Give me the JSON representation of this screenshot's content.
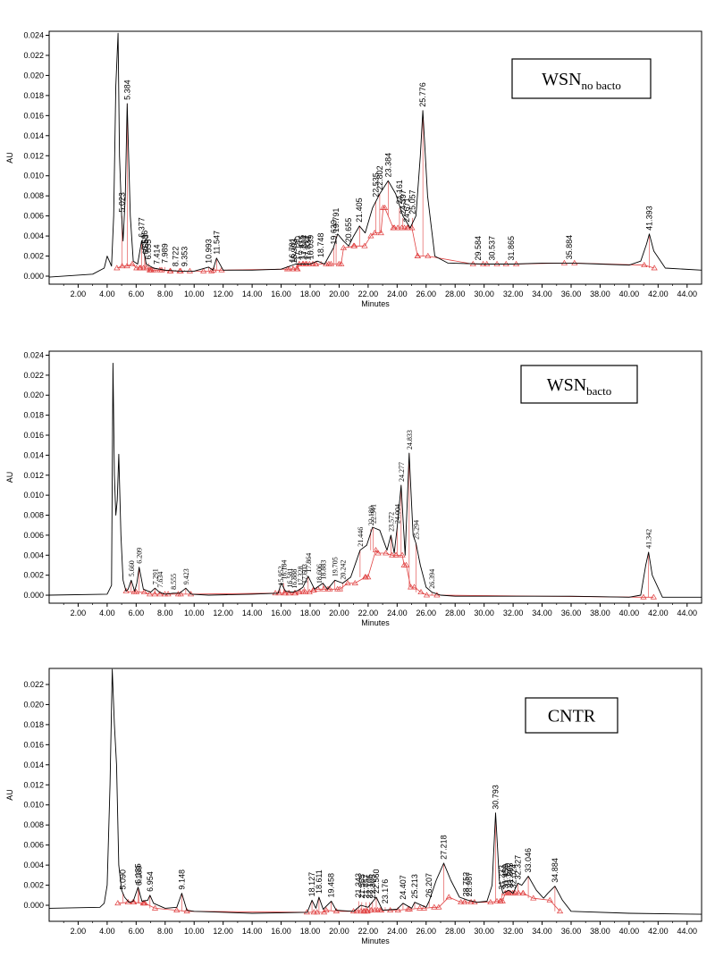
{
  "chart_data": [
    {
      "type": "line",
      "title": "WSN",
      "title_sub": "no bacto",
      "xlabel": "Minutes",
      "ylabel": "AU",
      "xlim": [
        0,
        45
      ],
      "ylim": [
        -0.0008,
        0.0244
      ],
      "xticks": [
        "2.00",
        "4.00",
        "6.00",
        "8.00",
        "10.00",
        "12.00",
        "14.00",
        "16.00",
        "18.00",
        "20.00",
        "22.00",
        "24.00",
        "26.00",
        "28.00",
        "30.00",
        "32.00",
        "34.00",
        "36.00",
        "38.00",
        "40.00",
        "42.00",
        "44.00"
      ],
      "yticks": [
        "0.000",
        "0.002",
        "0.004",
        "0.006",
        "0.008",
        "0.010",
        "0.012",
        "0.014",
        "0.016",
        "0.018",
        "0.020",
        "0.022",
        "0.024"
      ],
      "series": [
        {
          "x": [
            0.0,
            3.0,
            3.8,
            4.0,
            4.3,
            4.45,
            4.6,
            4.75,
            4.85,
            5.0,
            5.1,
            5.25,
            5.384,
            5.6,
            5.8,
            6.1,
            6.377,
            6.7,
            7.2,
            8.0,
            9.0,
            10.0,
            10.993,
            11.3,
            11.547,
            12.0,
            14.0,
            16.0,
            17.0,
            18.0,
            18.5,
            19.0,
            19.6,
            19.9,
            20.3,
            20.655,
            21.0,
            21.405,
            21.8,
            22.3,
            22.8,
            23.384,
            23.9,
            24.4,
            24.9,
            25.3,
            25.6,
            25.776,
            26.1,
            26.6,
            27.5,
            30.0,
            32.0,
            34.0,
            36.0,
            38.0,
            40.0,
            40.8,
            41.2,
            41.393,
            41.7,
            42.5,
            45.0
          ],
          "y": [
            -0.0001,
            0.0002,
            0.0008,
            0.002,
            0.001,
            0.006,
            0.019,
            0.0242,
            0.012,
            0.006,
            0.0035,
            0.008,
            0.0172,
            0.006,
            0.0015,
            0.0012,
            0.0035,
            0.0012,
            0.0008,
            0.0006,
            0.0005,
            0.0005,
            0.0009,
            0.0006,
            0.0018,
            0.0006,
            0.0006,
            0.0007,
            0.0012,
            0.0012,
            0.0015,
            0.0012,
            0.0028,
            0.0042,
            0.0035,
            0.003,
            0.004,
            0.005,
            0.0043,
            0.0068,
            0.0082,
            0.0095,
            0.0082,
            0.006,
            0.0048,
            0.006,
            0.012,
            0.0165,
            0.008,
            0.002,
            0.0013,
            0.0012,
            0.0012,
            0.0013,
            0.0013,
            0.0012,
            0.0011,
            0.0015,
            0.0032,
            0.0042,
            0.0025,
            0.0008,
            0.0006
          ]
        }
      ],
      "peaks": [
        {
          "rt": "5.023",
          "x": 5.023,
          "y": 0.006
        },
        {
          "rt": "5.384",
          "x": 5.384,
          "y": 0.0172
        },
        {
          "rt": "6.377",
          "x": 6.377,
          "y": 0.0035
        },
        {
          "rt": "6.586",
          "x": 6.586,
          "y": 0.0022
        },
        {
          "rt": "6.653",
          "x": 6.653,
          "y": 0.0018
        },
        {
          "rt": "6.855",
          "x": 6.855,
          "y": 0.0013
        },
        {
          "rt": "7.414",
          "x": 7.414,
          "y": 0.0008
        },
        {
          "rt": "7.989",
          "x": 7.989,
          "y": 0.0009
        },
        {
          "rt": "8.722",
          "x": 8.722,
          "y": 0.0006
        },
        {
          "rt": "9.353",
          "x": 9.353,
          "y": 0.0006
        },
        {
          "rt": "10.993",
          "x": 10.993,
          "y": 0.0009
        },
        {
          "rt": "11.547",
          "x": 11.547,
          "y": 0.0018
        },
        {
          "rt": "16.781",
          "x": 16.781,
          "y": 0.001
        },
        {
          "rt": "16.903",
          "x": 16.903,
          "y": 0.0009
        },
        {
          "rt": "17.180",
          "x": 17.18,
          "y": 0.0012
        },
        {
          "rt": "17.416",
          "x": 17.416,
          "y": 0.0013
        },
        {
          "rt": "17.604",
          "x": 17.604,
          "y": 0.0013
        },
        {
          "rt": "17.834",
          "x": 17.834,
          "y": 0.0012
        },
        {
          "rt": "18.039",
          "x": 18.039,
          "y": 0.0013
        },
        {
          "rt": "18.748",
          "x": 18.748,
          "y": 0.0015
        },
        {
          "rt": "19.639",
          "x": 19.639,
          "y": 0.0028
        },
        {
          "rt": "19.791",
          "x": 19.791,
          "y": 0.004
        },
        {
          "rt": "20.655",
          "x": 20.655,
          "y": 0.003
        },
        {
          "rt": "21.405",
          "x": 21.405,
          "y": 0.005
        },
        {
          "rt": "22.535",
          "x": 22.535,
          "y": 0.0075
        },
        {
          "rt": "22.802",
          "x": 22.802,
          "y": 0.0082
        },
        {
          "rt": "23.384",
          "x": 23.384,
          "y": 0.0095
        },
        {
          "rt": "24.161",
          "x": 24.161,
          "y": 0.0068
        },
        {
          "rt": "24.397",
          "x": 24.397,
          "y": 0.0058
        },
        {
          "rt": "24.671",
          "x": 24.671,
          "y": 0.005
        },
        {
          "rt": "25.057",
          "x": 25.057,
          "y": 0.0058
        },
        {
          "rt": "25.776",
          "x": 25.776,
          "y": 0.0165
        },
        {
          "rt": "29.584",
          "x": 29.584,
          "y": 0.0012
        },
        {
          "rt": "30.537",
          "x": 30.537,
          "y": 0.0012
        },
        {
          "rt": "31.865",
          "x": 31.865,
          "y": 0.0012
        },
        {
          "rt": "35.884",
          "x": 35.884,
          "y": 0.0013
        },
        {
          "rt": "41.393",
          "x": 41.393,
          "y": 0.0042
        }
      ]
    },
    {
      "type": "line",
      "title": "WSN",
      "title_sub": "bacto",
      "xlabel": "Minutes",
      "ylabel": "AU",
      "xlim": [
        0,
        45
      ],
      "ylim": [
        -0.0008,
        0.0244
      ],
      "xticks": [
        "2.00",
        "4.00",
        "6.00",
        "8.00",
        "10.00",
        "12.00",
        "14.00",
        "16.00",
        "18.00",
        "20.00",
        "22.00",
        "24.00",
        "26.00",
        "28.00",
        "30.00",
        "32.00",
        "34.00",
        "36.00",
        "38.00",
        "40.00",
        "42.00",
        "44.00"
      ],
      "yticks": [
        "0.000",
        "0.002",
        "0.004",
        "0.006",
        "0.008",
        "0.010",
        "0.012",
        "0.014",
        "0.016",
        "0.018",
        "0.020",
        "0.022",
        "0.024"
      ],
      "series": [
        {
          "x": [
            0.0,
            4.0,
            4.3,
            4.4,
            4.5,
            4.6,
            4.7,
            4.8,
            4.95,
            5.1,
            5.3,
            5.45,
            5.66,
            5.9,
            6.05,
            6.209,
            6.5,
            7.0,
            7.3,
            7.6,
            8.0,
            8.555,
            9.0,
            9.423,
            9.8,
            11.0,
            14.0,
            15.8,
            16.0,
            16.3,
            16.8,
            17.2,
            17.5,
            17.864,
            18.3,
            18.883,
            19.2,
            19.705,
            20.242,
            20.8,
            21.446,
            21.9,
            22.3,
            22.8,
            23.3,
            23.572,
            23.8,
            24.004,
            24.277,
            24.55,
            24.833,
            25.1,
            25.3,
            25.6,
            26.0,
            26.394,
            27.0,
            28.0,
            32.0,
            36.0,
            40.0,
            40.8,
            41.15,
            41.342,
            41.6,
            42.3,
            45.0
          ],
          "y": [
            0.0,
            0.0001,
            0.001,
            0.0232,
            0.012,
            0.008,
            0.0095,
            0.0141,
            0.006,
            0.0015,
            0.0004,
            0.0006,
            0.0015,
            0.0004,
            0.0012,
            0.0028,
            0.0006,
            0.0003,
            0.0007,
            0.0003,
            0.0001,
            0.0002,
            0.0002,
            0.0007,
            0.0001,
            0.0,
            0.0001,
            0.0002,
            0.0012,
            0.0004,
            0.0003,
            0.0005,
            0.0008,
            0.0019,
            0.0006,
            0.0012,
            0.0006,
            0.0015,
            0.0012,
            0.0018,
            0.0045,
            0.005,
            0.0068,
            0.0065,
            0.0045,
            0.006,
            0.0042,
            0.0068,
            0.011,
            0.004,
            0.0142,
            0.006,
            0.0052,
            0.003,
            0.0008,
            0.0003,
            0.0,
            -0.0001,
            -0.0001,
            -0.0001,
            -0.0002,
            0.0,
            0.003,
            0.0043,
            0.002,
            -0.0002,
            -0.0002
          ]
        }
      ],
      "peaks": [
        {
          "rt": "5.660",
          "x": 5.66,
          "y": 0.0015
        },
        {
          "rt": "6.209",
          "x": 6.209,
          "y": 0.0028
        },
        {
          "rt": "7.291",
          "x": 7.291,
          "y": 0.0007
        },
        {
          "rt": "7.634",
          "x": 7.634,
          "y": 0.0004
        },
        {
          "rt": "8.555",
          "x": 8.555,
          "y": 0.0002
        },
        {
          "rt": "9.423",
          "x": 9.423,
          "y": 0.0007
        },
        {
          "rt": "15.952",
          "x": 15.952,
          "y": 0.0006
        },
        {
          "rt": "16.184",
          "x": 16.184,
          "y": 0.0012
        },
        {
          "rt": "16.581",
          "x": 16.581,
          "y": 0.0004
        },
        {
          "rt": "16.888",
          "x": 16.888,
          "y": 0.0003
        },
        {
          "rt": "17.328",
          "x": 17.328,
          "y": 0.0006
        },
        {
          "rt": "17.603",
          "x": 17.603,
          "y": 0.0008
        },
        {
          "rt": "17.864",
          "x": 17.864,
          "y": 0.0019
        },
        {
          "rt": "18.606",
          "x": 18.606,
          "y": 0.0008
        },
        {
          "rt": "18.883",
          "x": 18.883,
          "y": 0.0012
        },
        {
          "rt": "19.705",
          "x": 19.705,
          "y": 0.0015
        },
        {
          "rt": "20.242",
          "x": 20.242,
          "y": 0.0012
        },
        {
          "rt": "21.446",
          "x": 21.446,
          "y": 0.0045
        },
        {
          "rt": "22.180",
          "x": 22.18,
          "y": 0.0066
        },
        {
          "rt": "22.341",
          "x": 22.341,
          "y": 0.0068
        },
        {
          "rt": "23.572",
          "x": 23.572,
          "y": 0.006
        },
        {
          "rt": "24.004",
          "x": 24.004,
          "y": 0.0068
        },
        {
          "rt": "24.277",
          "x": 24.277,
          "y": 0.011
        },
        {
          "rt": "24.833",
          "x": 24.833,
          "y": 0.0142
        },
        {
          "rt": "25.294",
          "x": 25.294,
          "y": 0.0052
        },
        {
          "rt": "26.394",
          "x": 26.394,
          "y": 0.0003
        },
        {
          "rt": "41.342",
          "x": 41.342,
          "y": 0.0043
        }
      ]
    },
    {
      "type": "line",
      "title": "CNTR",
      "title_sub": "",
      "xlabel": "Minutes",
      "ylabel": "AU",
      "xlim": [
        0,
        45
      ],
      "ylim": [
        -0.0016,
        0.0236
      ],
      "xticks": [
        "2.00",
        "4.00",
        "6.00",
        "8.00",
        "10.00",
        "12.00",
        "14.00",
        "16.00",
        "18.00",
        "20.00",
        "22.00",
        "24.00",
        "26.00",
        "28.00",
        "30.00",
        "32.00",
        "34.00",
        "36.00",
        "38.00",
        "40.00",
        "42.00",
        "44.00"
      ],
      "yticks": [
        "0.000",
        "0.002",
        "0.004",
        "0.006",
        "0.008",
        "0.010",
        "0.012",
        "0.014",
        "0.016",
        "0.018",
        "0.020",
        "0.022"
      ],
      "series": [
        {
          "x": [
            0.0,
            3.5,
            3.8,
            4.0,
            4.2,
            4.35,
            4.5,
            4.65,
            4.8,
            5.0,
            5.2,
            5.5,
            5.8,
            6.135,
            6.4,
            6.8,
            6.954,
            7.2,
            8.0,
            8.8,
            9.148,
            9.5,
            10.0,
            14.0,
            17.8,
            18.127,
            18.4,
            18.611,
            18.9,
            19.458,
            19.8,
            21.0,
            21.5,
            22.0,
            22.56,
            23.0,
            24.0,
            24.407,
            25.0,
            25.213,
            26.0,
            26.207,
            26.7,
            27.218,
            27.7,
            28.3,
            28.9,
            29.5,
            30.2,
            30.55,
            30.793,
            31.05,
            31.3,
            31.7,
            32.0,
            32.327,
            32.6,
            33.046,
            33.6,
            34.1,
            34.4,
            34.884,
            35.4,
            36.0,
            40.0,
            45.0
          ],
          "y": [
            -0.0003,
            -0.0002,
            0.0002,
            0.002,
            0.012,
            0.0235,
            0.018,
            0.014,
            0.004,
            0.0015,
            0.0008,
            0.0003,
            0.0004,
            0.0018,
            0.0004,
            0.0005,
            0.001,
            0.0002,
            -0.0003,
            -0.0002,
            0.0012,
            -0.0005,
            -0.0006,
            -0.0008,
            -0.0007,
            0.0005,
            -0.0003,
            0.0008,
            -0.0004,
            0.0004,
            -0.0005,
            -0.0006,
            0.0,
            -0.0002,
            0.0008,
            -0.0005,
            -0.0004,
            0.0002,
            -0.0003,
            0.0003,
            -0.0002,
            0.0004,
            0.0025,
            0.0042,
            0.0025,
            0.0008,
            0.0005,
            0.0003,
            0.0004,
            0.002,
            0.0092,
            0.0025,
            0.0012,
            0.0015,
            0.0012,
            0.0022,
            0.002,
            0.0029,
            0.0015,
            0.0007,
            0.0012,
            0.0019,
            0.0005,
            -0.0006,
            -0.0008,
            -0.0009
          ]
        }
      ],
      "peaks": [
        {
          "rt": "5.090",
          "x": 5.09,
          "y": 0.0012
        },
        {
          "rt": "6.135",
          "x": 6.135,
          "y": 0.0018
        },
        {
          "rt": "6.189",
          "x": 6.189,
          "y": 0.0016
        },
        {
          "rt": "6.954",
          "x": 6.954,
          "y": 0.001
        },
        {
          "rt": "9.148",
          "x": 9.148,
          "y": 0.0012
        },
        {
          "rt": "18.127",
          "x": 18.127,
          "y": 0.0005
        },
        {
          "rt": "18.611",
          "x": 18.611,
          "y": 0.0008
        },
        {
          "rt": "19.458",
          "x": 19.458,
          "y": 0.0004
        },
        {
          "rt": "21.343",
          "x": 21.343,
          "y": 0.0004
        },
        {
          "rt": "21.565",
          "x": 21.565,
          "y": 0.0003
        },
        {
          "rt": "21.857",
          "x": 21.857,
          "y": 0.0003
        },
        {
          "rt": "22.105",
          "x": 22.105,
          "y": 0.0003
        },
        {
          "rt": "22.305",
          "x": 22.305,
          "y": 0.0003
        },
        {
          "rt": "22.560",
          "x": 22.56,
          "y": 0.0008
        },
        {
          "rt": "23.176",
          "x": 23.176,
          "y": -0.0002
        },
        {
          "rt": "24.407",
          "x": 24.407,
          "y": 0.0002
        },
        {
          "rt": "25.213",
          "x": 25.213,
          "y": 0.0003
        },
        {
          "rt": "26.207",
          "x": 26.207,
          "y": 0.0004
        },
        {
          "rt": "27.218",
          "x": 27.218,
          "y": 0.0042
        },
        {
          "rt": "28.752",
          "x": 28.752,
          "y": 0.0005
        },
        {
          "rt": "28.987",
          "x": 28.987,
          "y": 0.0005
        },
        {
          "rt": "30.793",
          "x": 30.793,
          "y": 0.0092
        },
        {
          "rt": "31.233",
          "x": 31.233,
          "y": 0.0012
        },
        {
          "rt": "31.459",
          "x": 31.459,
          "y": 0.0013
        },
        {
          "rt": "31.620",
          "x": 31.62,
          "y": 0.0014
        },
        {
          "rt": "31.805",
          "x": 31.805,
          "y": 0.0014
        },
        {
          "rt": "32.024",
          "x": 32.024,
          "y": 0.0013
        },
        {
          "rt": "32.327",
          "x": 32.327,
          "y": 0.0022
        },
        {
          "rt": "33.046",
          "x": 33.046,
          "y": 0.0029
        },
        {
          "rt": "34.884",
          "x": 34.884,
          "y": 0.0019
        }
      ]
    }
  ],
  "colors": {
    "trace": "#000000",
    "integration": "#e04040",
    "frame": "#000000"
  }
}
